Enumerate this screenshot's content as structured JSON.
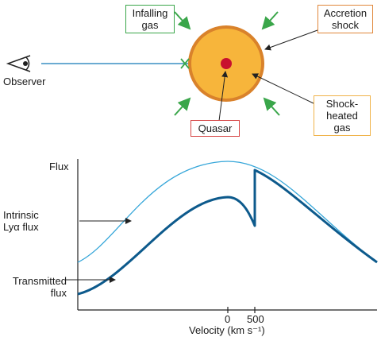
{
  "labels": {
    "infalling_gas": [
      "Infalling",
      "gas"
    ],
    "accretion_shock": [
      "Accretion",
      "shock"
    ],
    "observer": "Observer",
    "quasar": "Quasar",
    "shock_heated_gas": [
      "Shock-",
      "heated",
      "gas"
    ],
    "flux_axis": "Flux",
    "intrinsic_flux": [
      "Intrinsic",
      "Lyα flux"
    ],
    "transmitted_flux": [
      "Transmitted",
      "flux"
    ],
    "velocity_axis": "Velocity (km s⁻¹)",
    "tick_0": "0",
    "tick_500": "500"
  },
  "colors": {
    "infalling_box": "#3aa64a",
    "accretion_box": "#e0873a",
    "shock_heated_box": "#f0b34a",
    "quasar_box": "#d64545",
    "sphere_fill": "#f7b53b",
    "sphere_edge": "#d9822b",
    "quasar_dot": "#c8102e",
    "arrow_green": "#3aa64a",
    "sightline": "#3a8fc4",
    "intrinsic_curve": "#35a6d9",
    "transmitted_curve": "#0d5a8c"
  },
  "chart_data": {
    "type": "line",
    "xlabel": "Velocity (km s⁻¹)",
    "ylabel": "Flux",
    "x_ticks": [
      0,
      500
    ],
    "series": [
      {
        "name": "Intrinsic Lyα flux",
        "style": "thin light blue, smooth peak near 0"
      },
      {
        "name": "Transmitted flux",
        "style": "thick dark blue, absorbed below the intrinsic curve, sharp dip and jump at 500 km s⁻¹"
      }
    ],
    "grid": false
  }
}
